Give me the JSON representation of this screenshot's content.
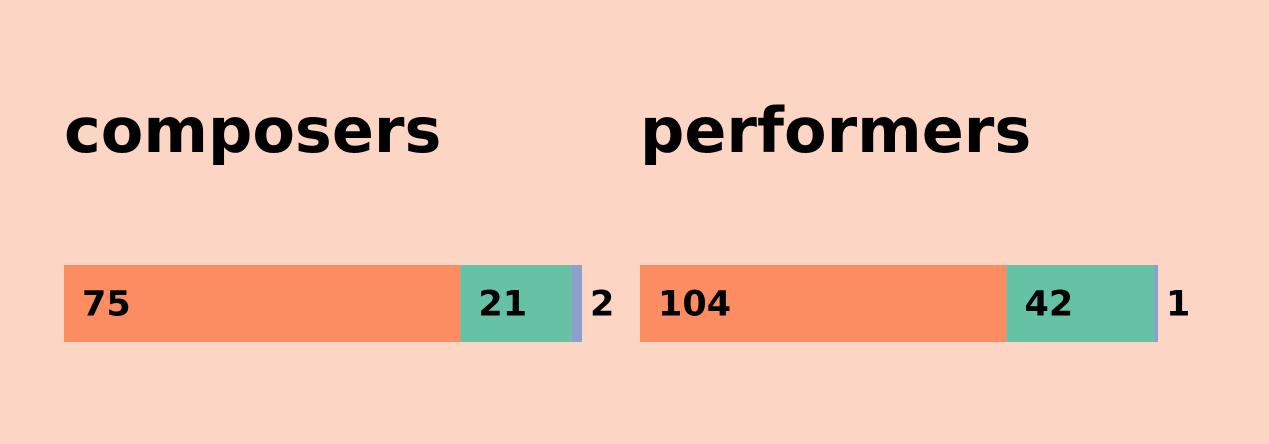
{
  "chart_data": [
    {
      "type": "stacked-bar",
      "title": "composers",
      "values": [
        75,
        21,
        2
      ],
      "colors": [
        "#fc8d62",
        "#66c2a5",
        "#8da0cb"
      ]
    },
    {
      "type": "stacked-bar",
      "title": "performers",
      "values": [
        104,
        42,
        1
      ],
      "colors": [
        "#fc8d62",
        "#66c2a5",
        "#8da0cb"
      ]
    }
  ]
}
